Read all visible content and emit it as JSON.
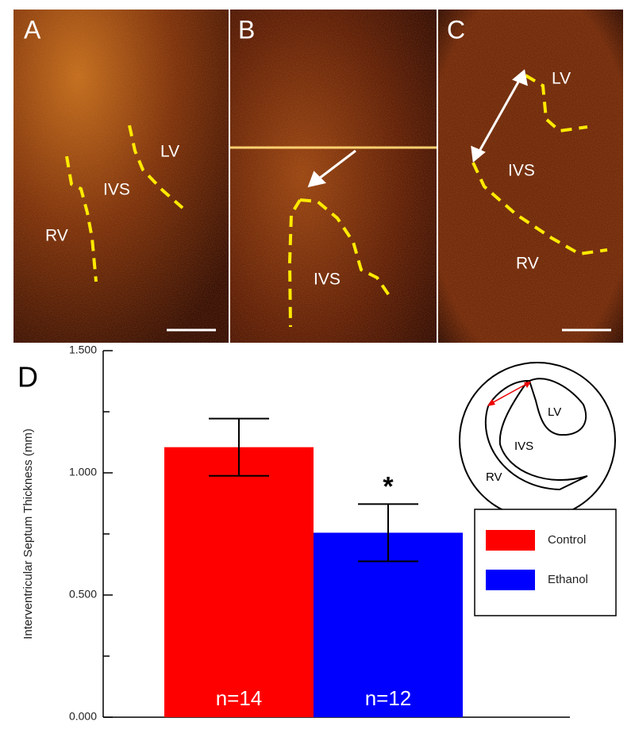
{
  "panels": [
    {
      "label": "A",
      "annotations": [
        "LV",
        "IVS",
        "RV"
      ]
    },
    {
      "label": "B",
      "annotations": [
        "IVS"
      ]
    },
    {
      "label": "C",
      "annotations": [
        "LV",
        "IVS",
        "RV"
      ]
    }
  ],
  "chart_data": {
    "type": "bar",
    "panel_label": "D",
    "y_label": "Interventricular Septum Thickness (mm)",
    "categories": [
      "Control",
      "Ethanol"
    ],
    "series": [
      {
        "name": "Control",
        "color": "#ff0000"
      },
      {
        "name": "Ethanol",
        "color": "#0000ff"
      }
    ],
    "values": [
      1.105,
      0.755
    ],
    "errors": [
      0.117,
      0.117
    ],
    "bar_labels": [
      "n=14",
      "n=12"
    ],
    "annotation": "*",
    "ylim": [
      0,
      1.5
    ],
    "yticks": [
      {
        "value": 0,
        "label": "0.000"
      },
      {
        "value": 0.5,
        "label": "0.500"
      },
      {
        "value": 1,
        "label": "1.000"
      },
      {
        "value": 1.5,
        "label": "1.500"
      }
    ],
    "minor_yticks": [
      0.25,
      0.75,
      1.25
    ],
    "inset_labels": [
      "LV",
      "IVS",
      "RV"
    ]
  }
}
